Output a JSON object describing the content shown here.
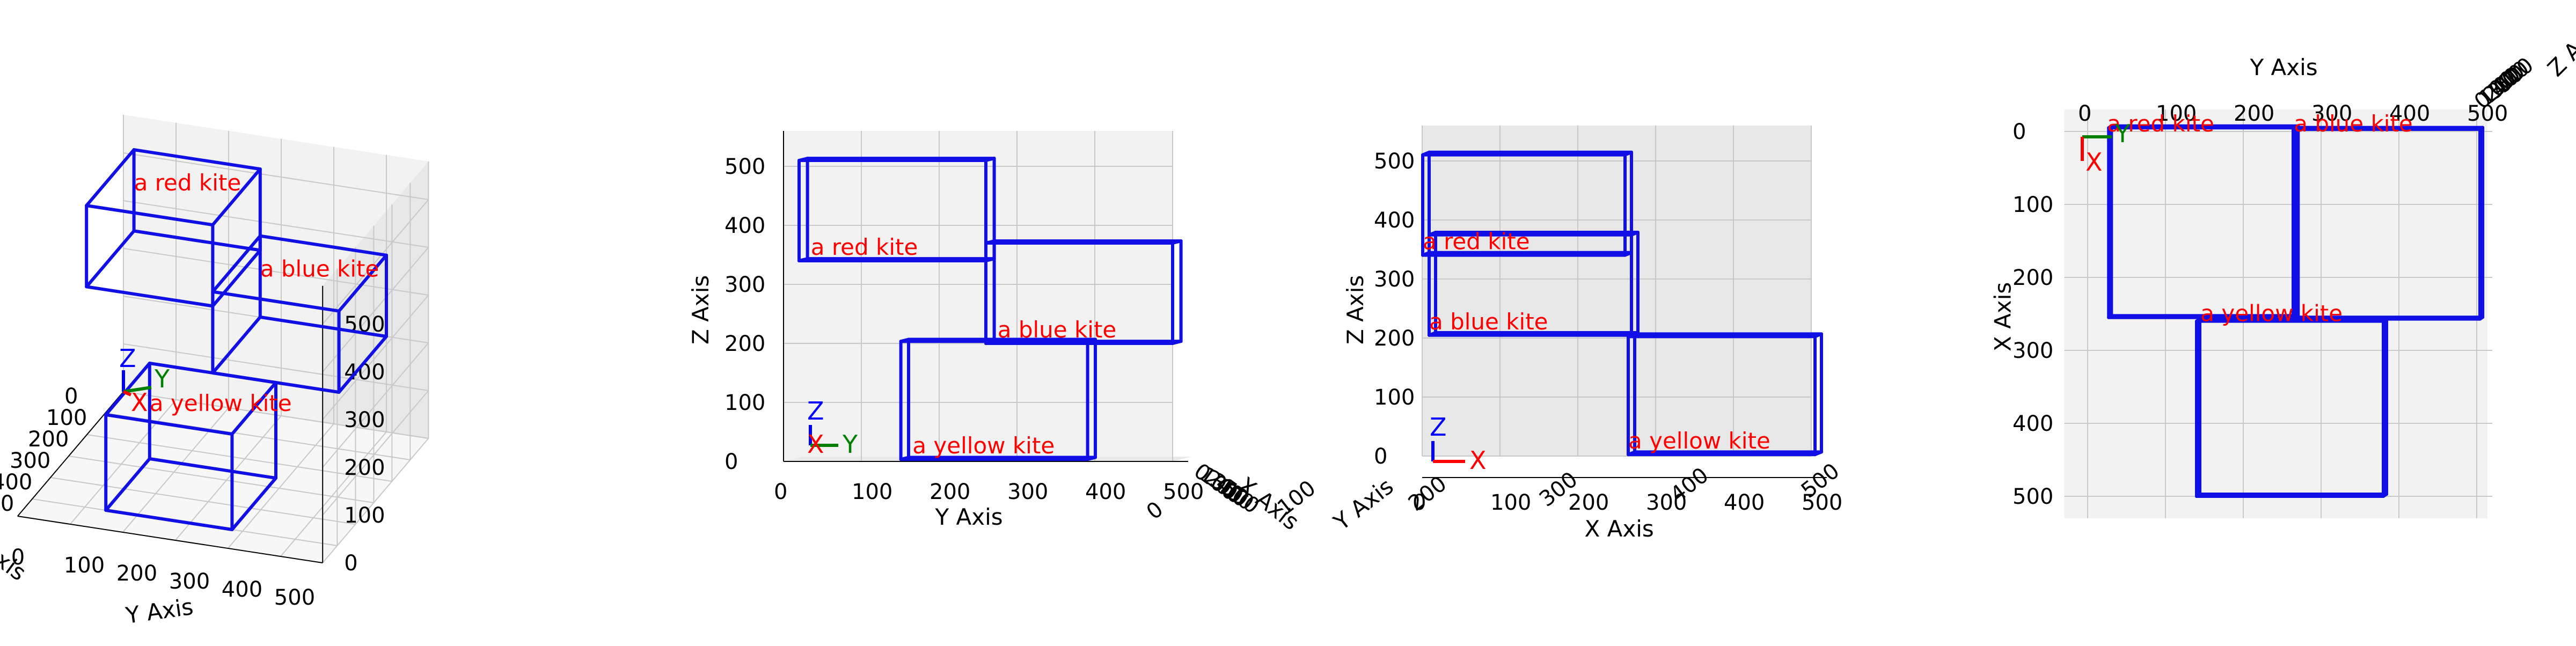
{
  "axes": {
    "x_title": "X Axis",
    "y_title": "Y Axis",
    "z_title": "Z Axis"
  },
  "ticks": [
    "0",
    "100",
    "200",
    "300",
    "400",
    "500"
  ],
  "gizmo": {
    "x": "X",
    "y": "Y",
    "z": "Z"
  },
  "colors": {
    "box": "#1010e6",
    "label": "#ff0000",
    "gizmo_x": "#ff0000",
    "gizmo_y": "#008000",
    "gizmo_z": "#0000ff",
    "pane": "#f2f2f2",
    "pane_dark": "#e8e8e8",
    "grid": "#c8c8c8"
  },
  "objects": [
    {
      "label": "a red kite",
      "x": [
        0,
        260
      ],
      "y": [
        20,
        260
      ],
      "z": [
        340,
        510
      ]
    },
    {
      "label": "a blue kite",
      "x": [
        0,
        260
      ],
      "y": [
        260,
        500
      ],
      "z": [
        200,
        370
      ]
    },
    {
      "label": "a yellow kite",
      "x": [
        260,
        500
      ],
      "y": [
        140,
        380
      ],
      "z": [
        0,
        200
      ]
    }
  ],
  "views": [
    {
      "name": "perspective"
    },
    {
      "name": "front"
    },
    {
      "name": "side"
    },
    {
      "name": "top"
    }
  ]
}
